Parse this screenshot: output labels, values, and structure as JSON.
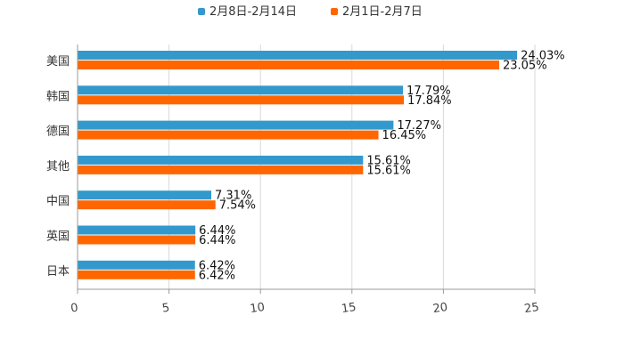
{
  "chart_data": {
    "type": "bar",
    "orientation": "horizontal",
    "categories": [
      "美国",
      "韩国",
      "德国",
      "其他",
      "中国",
      "英国",
      "日本"
    ],
    "series": [
      {
        "name": "2月8日-2月14日",
        "color": "#3399CC",
        "values": [
          24.03,
          17.79,
          17.27,
          15.61,
          7.31,
          6.44,
          6.42
        ],
        "labels": [
          "24.03%",
          "17.79%",
          "17.27%",
          "15.61%",
          "7.31%",
          "6.44%",
          "6.42%"
        ]
      },
      {
        "name": "2月1日-2月7日",
        "color": "#FF6600",
        "values": [
          23.05,
          17.84,
          16.45,
          15.61,
          7.54,
          6.44,
          6.42
        ],
        "labels": [
          "23.05%",
          "17.84%",
          "16.45%",
          "15.61%",
          "7.54%",
          "6.44%",
          "6.42%"
        ]
      }
    ],
    "xlim": [
      0,
      25
    ],
    "xticks": [
      "0",
      "5",
      "10",
      "15",
      "20",
      "25"
    ],
    "grid": true,
    "legend": "top-center"
  }
}
